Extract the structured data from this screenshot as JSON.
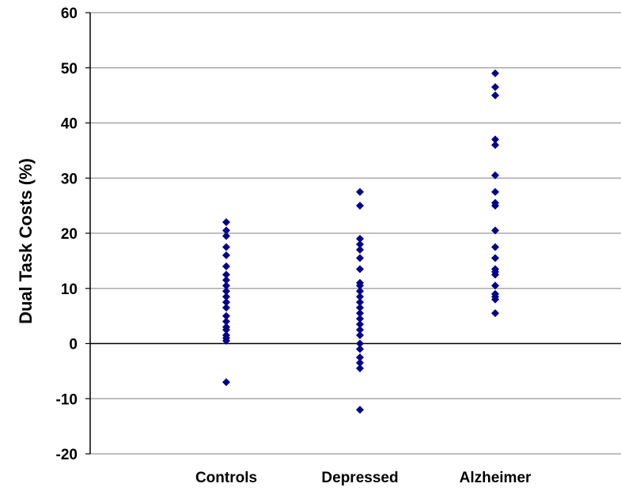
{
  "chart_data": {
    "type": "scatter",
    "title": "",
    "xlabel": "",
    "ylabel": "Dual Task Costs (%)",
    "ylim": [
      -20,
      60
    ],
    "yticks": [
      -20,
      -10,
      0,
      10,
      20,
      30,
      40,
      50,
      60
    ],
    "grid": true,
    "legend": "none",
    "categories": [
      "Controls",
      "Depressed",
      "Alzheimer"
    ],
    "marker_color": "#00008B",
    "series": [
      {
        "category": "Controls",
        "values": [
          22,
          20.5,
          19.5,
          17.5,
          16,
          14,
          12.5,
          11.5,
          10.5,
          9.5,
          8.5,
          7.5,
          6.5,
          5,
          4,
          3,
          2.5,
          1.5,
          1,
          0.5,
          -7
        ]
      },
      {
        "category": "Depressed",
        "values": [
          27.5,
          25,
          19,
          18,
          17,
          15.5,
          13.5,
          11,
          10.5,
          9.5,
          8.5,
          7.5,
          6.5,
          5.5,
          4.5,
          3.5,
          2.5,
          1.5,
          0,
          -1,
          -2.5,
          -3.5,
          -4.5,
          -12
        ]
      },
      {
        "category": "Alzheimer",
        "values": [
          49,
          46.5,
          45,
          37,
          36,
          30.5,
          27.5,
          25.5,
          25,
          20.5,
          17.5,
          15.5,
          13.5,
          13,
          12.5,
          10.5,
          9,
          8.5,
          8,
          5.5
        ]
      }
    ]
  }
}
